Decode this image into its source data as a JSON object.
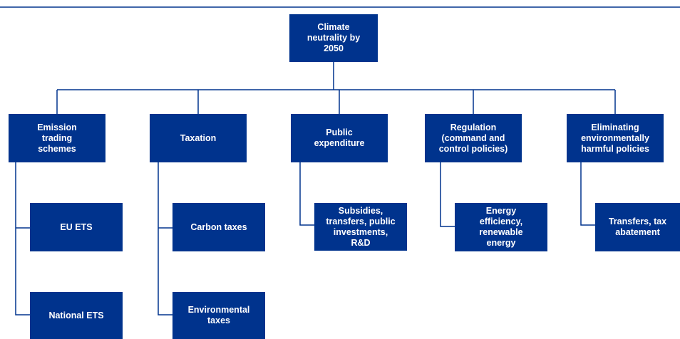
{
  "nodes": [
    {
      "lines": [
        "Climate",
        "neutrality by",
        "2050"
      ]
    },
    {
      "lines": [
        "Emission",
        "trading",
        "schemes"
      ]
    },
    {
      "lines": [
        "Taxation"
      ]
    },
    {
      "lines": [
        "Public",
        "expenditure"
      ]
    },
    {
      "lines": [
        "Regulation",
        "(command and",
        "control policies)"
      ]
    },
    {
      "lines": [
        "Eliminating",
        "environmentally",
        "harmful policies"
      ]
    },
    {
      "lines": [
        "EU ETS"
      ]
    },
    {
      "lines": [
        "National ETS"
      ]
    },
    {
      "lines": [
        "Carbon taxes"
      ]
    },
    {
      "lines": [
        "Environmental",
        "taxes"
      ]
    },
    {
      "lines": [
        "Subsidies,",
        "transfers, public",
        "investments,",
        "R&D"
      ]
    },
    {
      "lines": [
        "Energy",
        "efficiency,",
        "renewable",
        "energy"
      ]
    },
    {
      "lines": [
        "Transfers, tax",
        "abatement"
      ]
    }
  ]
}
